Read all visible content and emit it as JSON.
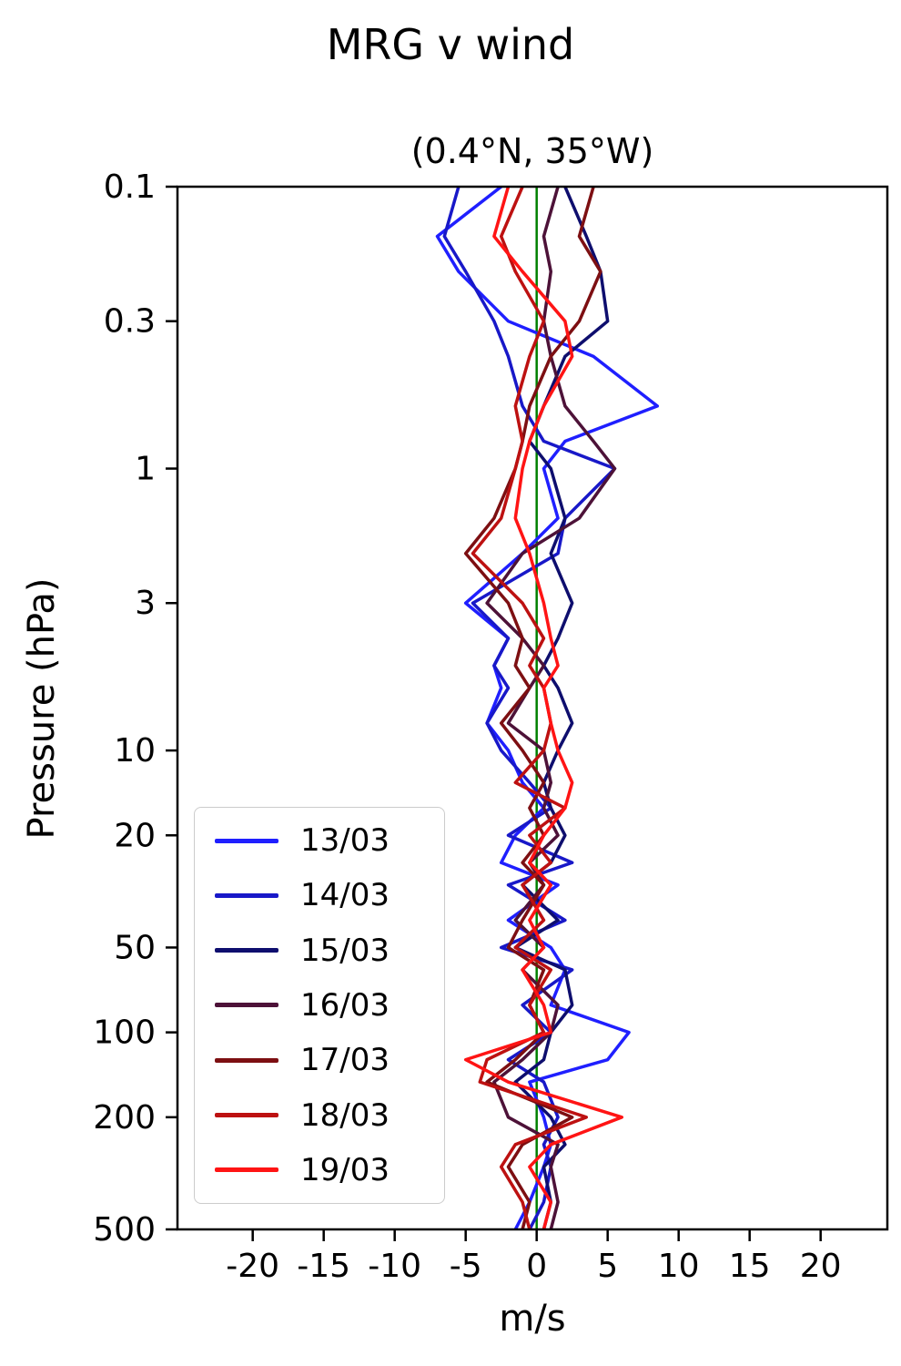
{
  "title": "MRG v wind",
  "subtitle": "(0.4°N, 35°W)",
  "xlabel": "m/s",
  "ylabel": "Pressure (hPa)",
  "chart_data": {
    "type": "line",
    "title": "MRG v wind",
    "subtitle": "(0.4°N, 35°W)",
    "xlabel": "m/s",
    "ylabel": "Pressure (hPa)",
    "x_axis": {
      "lim": [
        -25.3,
        24.7
      ],
      "ticks": [
        -20,
        -15,
        -10,
        -5,
        0,
        5,
        10,
        15,
        20
      ]
    },
    "y_axis": {
      "scale": "log",
      "inverted": true,
      "lim": [
        0.1,
        500
      ],
      "ticks": [
        0.1,
        0.3,
        1,
        3,
        10,
        20,
        50,
        100,
        200,
        500
      ],
      "tick_labels": [
        "0.1",
        "0.3",
        "1",
        "3",
        "10",
        "20",
        "50",
        "100",
        "200",
        "500"
      ]
    },
    "zero_line": {
      "x": 0,
      "color": "#008000"
    },
    "grid": false,
    "legend_position": "lower left",
    "pressure_levels": [
      0.1,
      0.15,
      0.2,
      0.3,
      0.4,
      0.6,
      0.8,
      1,
      1.5,
      2,
      3,
      4,
      5,
      6,
      8,
      10,
      13,
      16,
      20,
      25,
      30,
      40,
      50,
      60,
      80,
      100,
      125,
      150,
      200,
      250,
      300,
      400,
      500
    ],
    "series": [
      {
        "name": "13/03",
        "color": "#1f1fff",
        "values": [
          -2.5,
          -7,
          -5.5,
          -2,
          4,
          8.5,
          2,
          0.5,
          1.5,
          -1,
          -5,
          -2,
          -3,
          -2.5,
          -3.5,
          -2,
          -1,
          0.5,
          -1.5,
          -2.5,
          1.5,
          -2,
          1,
          2,
          1,
          6.5,
          5,
          -0.5,
          0.5,
          1,
          0.5,
          -0.5,
          -1.5
        ]
      },
      {
        "name": "14/03",
        "color": "#1818c8",
        "values": [
          -5.5,
          -6.5,
          -5,
          -3,
          -2,
          -1,
          0.5,
          5.5,
          2,
          1.5,
          -4.5,
          -2,
          -3,
          -2,
          -3.5,
          -2.5,
          -0.5,
          1,
          -2,
          2.5,
          -2,
          2,
          -2.5,
          2.5,
          -1,
          1,
          -2,
          0.5,
          1.5,
          0.5,
          1,
          0.5,
          -0.5
        ]
      },
      {
        "name": "15/03",
        "color": "#0e0e6e",
        "values": [
          2,
          3.5,
          4.5,
          5,
          2,
          0.5,
          -0.5,
          1,
          2,
          1,
          2.5,
          1.5,
          0.5,
          1.5,
          2.5,
          1.5,
          0.5,
          1,
          2,
          1,
          -1,
          1.5,
          -1.5,
          2,
          2.5,
          1,
          0.5,
          -1.5,
          1,
          2,
          0.5,
          1,
          0.5
        ]
      },
      {
        "name": "16/03",
        "color": "#4d1238",
        "values": [
          1.5,
          0.5,
          1,
          0.5,
          1,
          2,
          4,
          5.5,
          3,
          -1,
          -3.5,
          -1,
          0.5,
          -0.5,
          -2,
          0.5,
          1,
          0.5,
          1.5,
          -0.5,
          0.5,
          -1.5,
          0.5,
          -1,
          1.5,
          1,
          -1,
          -3,
          -2,
          1.5,
          1,
          1.5,
          1
        ]
      },
      {
        "name": "17/03",
        "color": "#7d0f12",
        "values": [
          4,
          3,
          4.5,
          3,
          1,
          -0.5,
          -1,
          -1.5,
          -3,
          -5,
          -2,
          -1,
          -1.5,
          -0.5,
          -2.5,
          -1,
          0.5,
          -0.5,
          0.5,
          -1,
          0.5,
          -1,
          -2,
          0.5,
          -0.5,
          0.5,
          -1.5,
          -3.5,
          2.5,
          -1,
          -2,
          -0.5,
          -1
        ]
      },
      {
        "name": "18/03",
        "color": "#bd1111",
        "values": [
          -1,
          -2.5,
          -1.5,
          0.5,
          -0.5,
          -1.5,
          -1,
          -1.5,
          -2.5,
          -4.5,
          -1,
          0.5,
          -0.5,
          0.5,
          1,
          0.5,
          -1.5,
          2,
          -0.5,
          1,
          -1,
          0.5,
          -1.5,
          1,
          -0.5,
          0.5,
          -3.5,
          -4,
          3.5,
          -1.5,
          -2.5,
          -1,
          -0.5
        ]
      },
      {
        "name": "19/03",
        "color": "#ff1414",
        "values": [
          -2,
          -3,
          -1,
          2,
          2.5,
          0.5,
          -0.5,
          -1,
          -1.5,
          -0.5,
          0.5,
          1,
          1.5,
          0.5,
          1,
          1.5,
          2.5,
          2,
          0.5,
          -0.5,
          1,
          -0.5,
          0.5,
          -1,
          0.5,
          1,
          -5,
          -2,
          6,
          1,
          -0.5,
          1,
          0.5
        ]
      }
    ]
  }
}
